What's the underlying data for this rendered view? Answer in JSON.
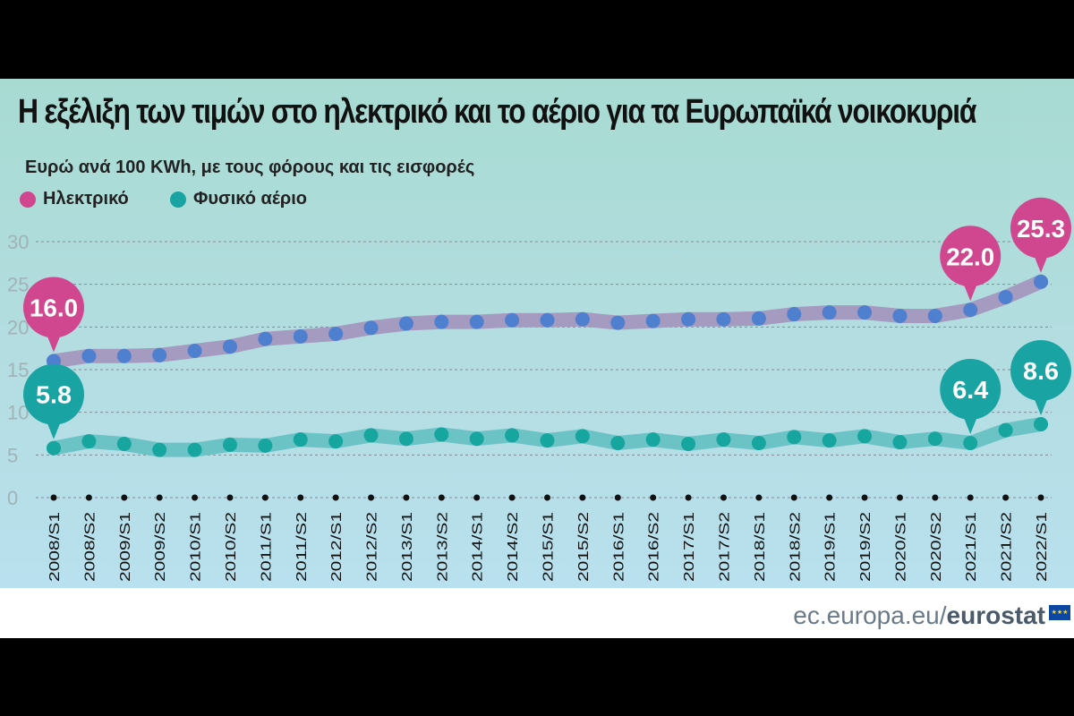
{
  "title": "Η εξέλιξη των τιμών στο ηλεκτρικό και το αέριο για τα Ευρωπαϊκά νοικοκυριά",
  "subtitle": "Ευρώ ανά 100 KWh, με τους φόρους και τις εισφορές",
  "source": {
    "prefix": "ec.europa.eu/",
    "brand": "eurostat"
  },
  "chart_data": {
    "type": "line",
    "title": "Η εξέλιξη των τιμών στο ηλεκτρικό και το αέριο για τα Ευρωπαϊκά νοικοκυριά",
    "subtitle": "Ευρώ ανά 100 KWh, με τους φόρους και τις εισφορές",
    "ylim": [
      0,
      30
    ],
    "yticks": [
      0,
      5,
      10,
      15,
      20,
      25,
      30
    ],
    "grid": true,
    "legend": "top-left",
    "categories": [
      "2008/S1",
      "2008/S2",
      "2009/S1",
      "2009/S2",
      "2010/S1",
      "2010/S2",
      "2011/S1",
      "2011/S2",
      "2012/S1",
      "2012/S2",
      "2013/S1",
      "2013/S2",
      "2014/S1",
      "2014/S2",
      "2015/S1",
      "2015/S2",
      "2016/S1",
      "2016/S2",
      "2017/S1",
      "2017/S2",
      "2018/S1",
      "2018/S2",
      "2019/S1",
      "2019/S2",
      "2020/S1",
      "2020/S2",
      "2021/S1",
      "2021/S2",
      "2022/S1"
    ],
    "series": [
      {
        "name": "Ηλεκτρικό",
        "color": "#d0478f",
        "dot_color": "#4f7fcf",
        "line_color": "#a59ac0",
        "values": [
          16.0,
          16.6,
          16.6,
          16.7,
          17.2,
          17.7,
          18.6,
          18.9,
          19.2,
          19.9,
          20.4,
          20.6,
          20.6,
          20.8,
          20.8,
          20.9,
          20.5,
          20.7,
          20.9,
          20.9,
          21.0,
          21.5,
          21.7,
          21.7,
          21.3,
          21.3,
          22.0,
          23.5,
          25.3
        ],
        "labels": [
          {
            "index": 0,
            "text": "16.0"
          },
          {
            "index": 26,
            "text": "22.0"
          },
          {
            "index": 28,
            "text": "25.3"
          }
        ]
      },
      {
        "name": "Φυσικό αέριο",
        "color": "#1aa3a3",
        "dot_color": "#17a5a0",
        "line_color": "#6cc3c6",
        "values": [
          5.8,
          6.6,
          6.3,
          5.6,
          5.6,
          6.2,
          6.1,
          6.8,
          6.6,
          7.3,
          6.9,
          7.4,
          6.9,
          7.3,
          6.7,
          7.2,
          6.4,
          6.8,
          6.3,
          6.8,
          6.4,
          7.1,
          6.7,
          7.2,
          6.5,
          6.9,
          6.4,
          7.9,
          8.6
        ],
        "labels": [
          {
            "index": 0,
            "text": "5.8"
          },
          {
            "index": 26,
            "text": "6.4"
          },
          {
            "index": 28,
            "text": "8.6"
          }
        ]
      }
    ]
  }
}
